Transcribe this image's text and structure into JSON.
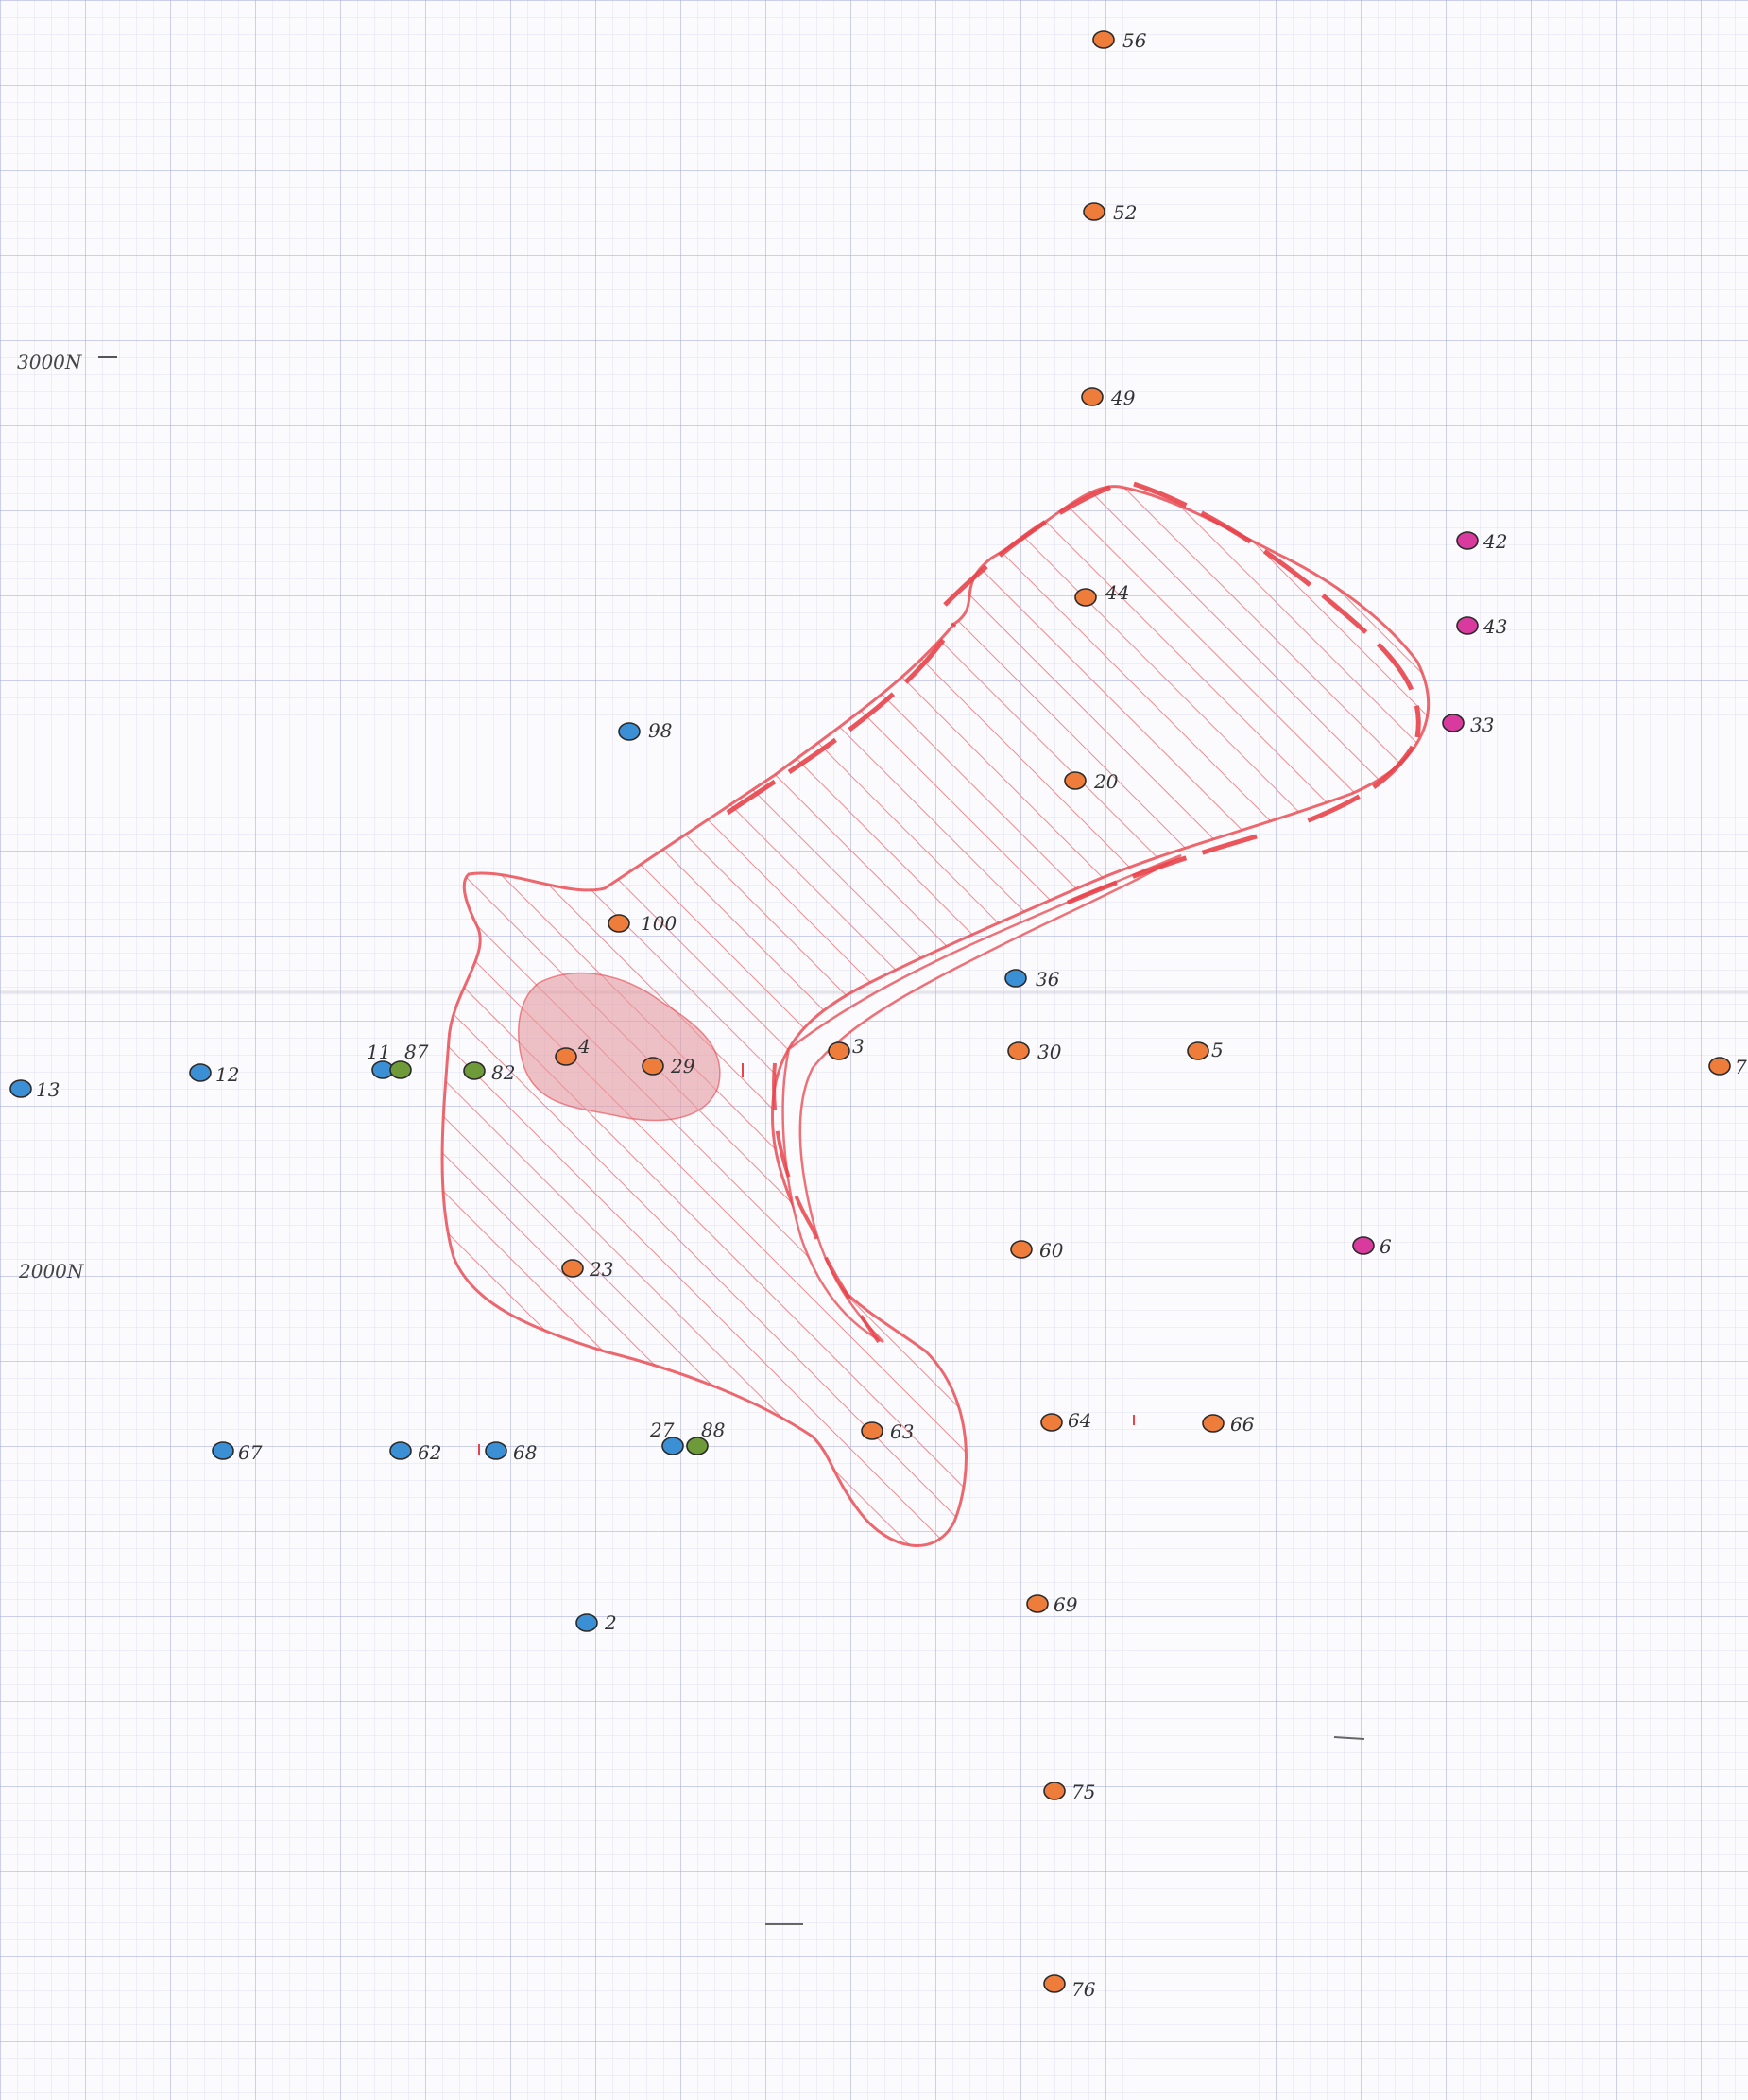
{
  "colors": {
    "orange": "#ee7d3c",
    "blue": "#3b8fd4",
    "green": "#6e9a3a",
    "magenta": "#d93a9e",
    "anomaly_line": "#e8434a",
    "anomaly_hatch": "#f08a8e",
    "core_fill": "#e59aa0"
  },
  "northing_labels": {
    "n3000": "3000N",
    "n2000": "2000N"
  },
  "points": [
    {
      "id": "56",
      "color": "orange"
    },
    {
      "id": "52",
      "color": "orange"
    },
    {
      "id": "49",
      "color": "orange"
    },
    {
      "id": "42",
      "color": "magenta"
    },
    {
      "id": "43",
      "color": "magenta"
    },
    {
      "id": "44",
      "color": "orange"
    },
    {
      "id": "33",
      "color": "magenta"
    },
    {
      "id": "98",
      "color": "blue"
    },
    {
      "id": "20",
      "color": "orange"
    },
    {
      "id": "100",
      "color": "orange"
    },
    {
      "id": "36",
      "color": "blue"
    },
    {
      "id": "13",
      "color": "blue"
    },
    {
      "id": "12",
      "color": "blue"
    },
    {
      "id": "11",
      "color": "blue"
    },
    {
      "id": "87",
      "color": "green"
    },
    {
      "id": "82",
      "color": "green"
    },
    {
      "id": "4",
      "color": "orange"
    },
    {
      "id": "29",
      "color": "orange"
    },
    {
      "id": "3",
      "color": "orange"
    },
    {
      "id": "30",
      "color": "orange"
    },
    {
      "id": "5",
      "color": "orange"
    },
    {
      "id": "7",
      "color": "orange"
    },
    {
      "id": "23",
      "color": "orange"
    },
    {
      "id": "60",
      "color": "orange"
    },
    {
      "id": "6",
      "color": "magenta"
    },
    {
      "id": "67",
      "color": "blue"
    },
    {
      "id": "62",
      "color": "blue"
    },
    {
      "id": "68",
      "color": "blue"
    },
    {
      "id": "27",
      "color": "blue"
    },
    {
      "id": "88",
      "color": "green"
    },
    {
      "id": "63",
      "color": "orange"
    },
    {
      "id": "64",
      "color": "orange"
    },
    {
      "id": "66",
      "color": "orange"
    },
    {
      "id": "2",
      "color": "blue"
    },
    {
      "id": "69",
      "color": "orange"
    },
    {
      "id": "75",
      "color": "orange"
    },
    {
      "id": "76",
      "color": "orange"
    }
  ]
}
